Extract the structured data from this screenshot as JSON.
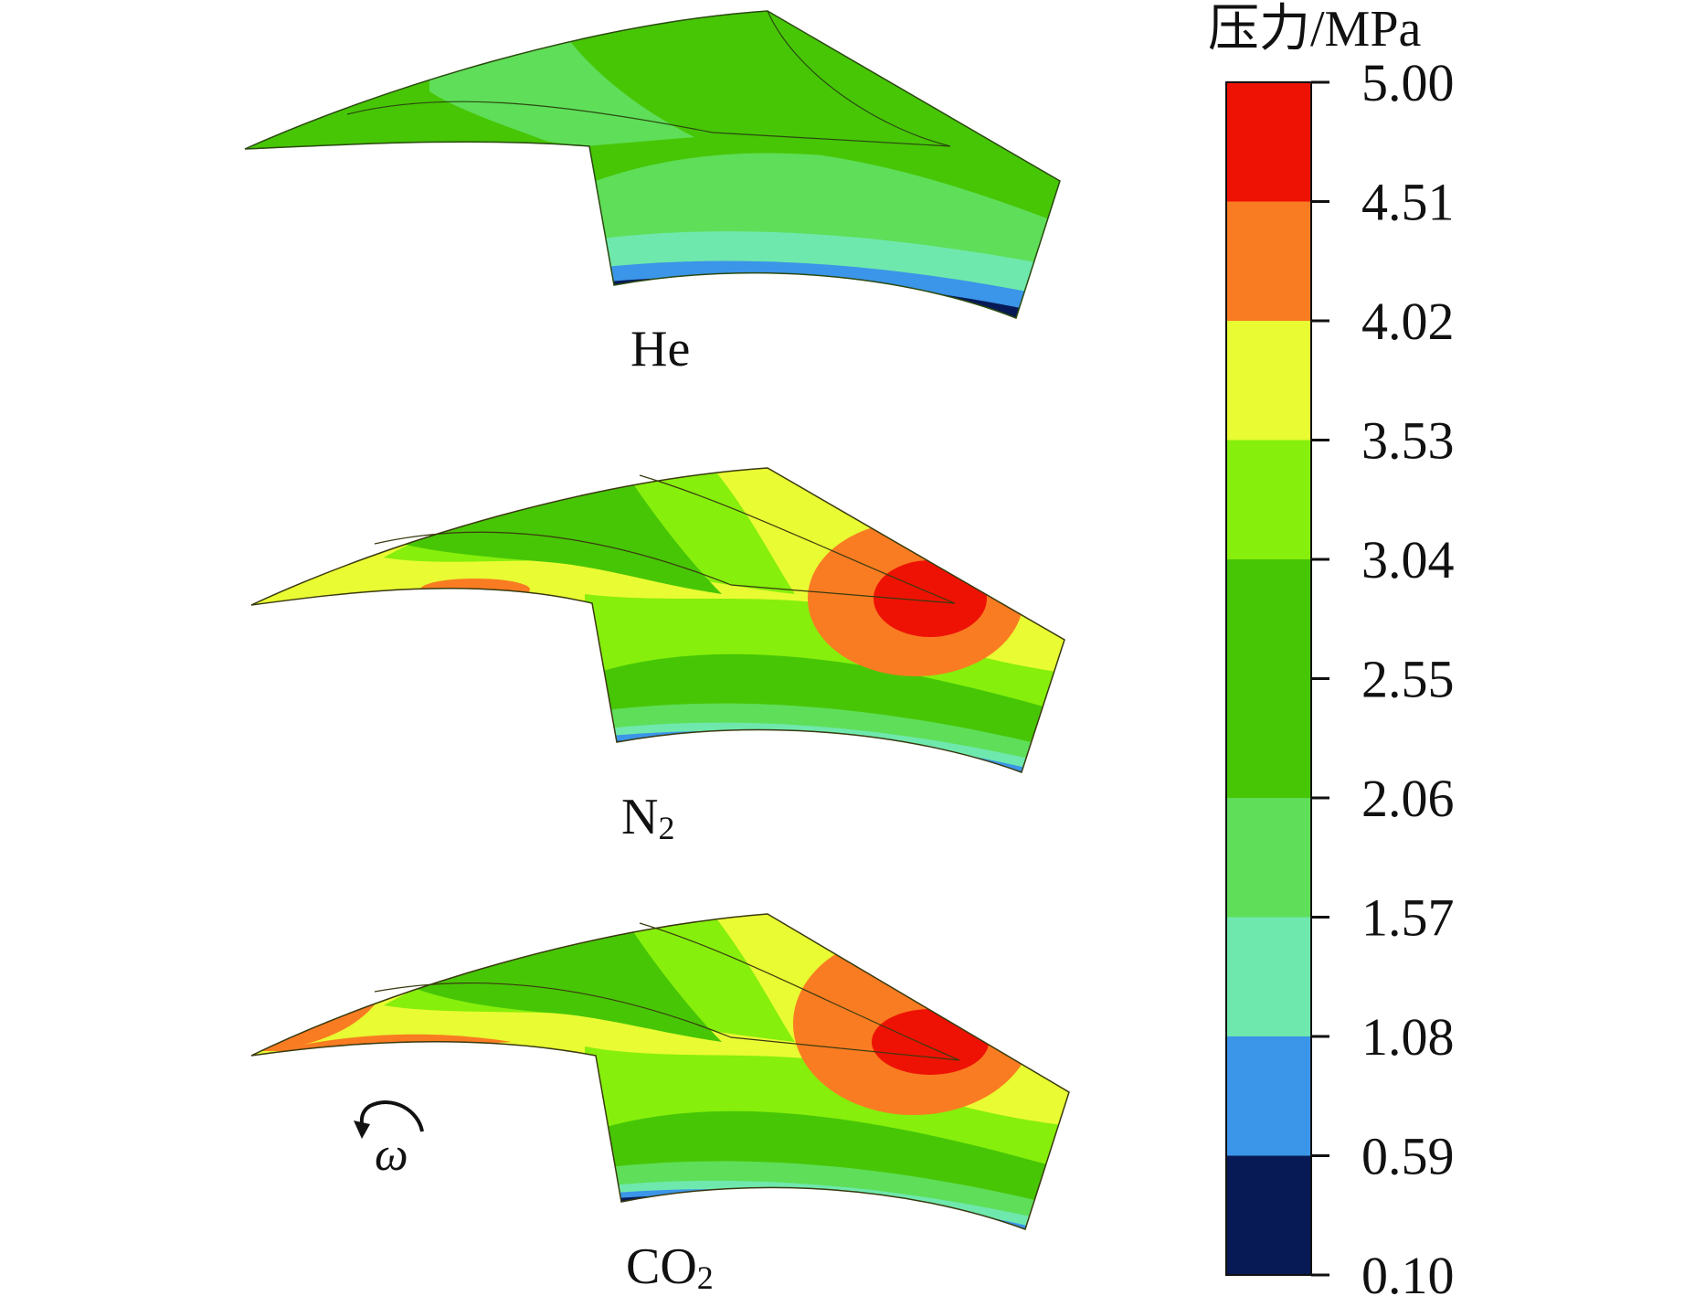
{
  "colorbar": {
    "title": "压力/MPa",
    "ticks": [
      "5.00",
      "4.51",
      "4.02",
      "3.53",
      "3.04",
      "2.55",
      "2.06",
      "1.57",
      "1.08",
      "0.59",
      "0.10"
    ],
    "band_colors_top_to_bottom": [
      "#ee1204",
      "#f97c22",
      "#e9fb33",
      "#86ef0c",
      "#47c606",
      "#47c606",
      "#5fde59",
      "#6fe8ad",
      "#3b95e8",
      "#071a55"
    ]
  },
  "panels": [
    {
      "id": "he",
      "label": "He",
      "subscript": ""
    },
    {
      "id": "n2",
      "label": "N",
      "subscript": "2"
    },
    {
      "id": "co2",
      "label": "CO",
      "subscript": "2"
    }
  ],
  "rotation_symbol": "ω",
  "colors": {
    "red": "#ee1204",
    "orange": "#f97c22",
    "yellow": "#e9fb33",
    "light_green": "#86ef0c",
    "green": "#47c606",
    "mint_green": "#5fde59",
    "aqua": "#6fe8ad",
    "blue": "#3b95e8",
    "navy": "#071a55"
  }
}
